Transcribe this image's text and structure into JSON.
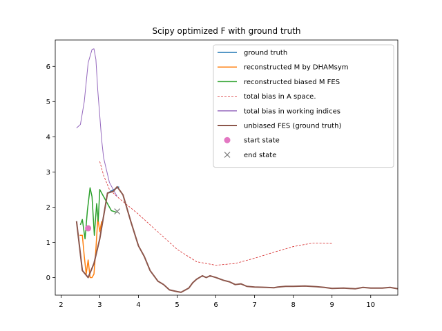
{
  "chart_data": {
    "type": "line",
    "title": "Scipy optimized F with ground truth",
    "xlabel": "",
    "ylabel": "",
    "xlim": [
      1.85,
      10.7
    ],
    "ylim": [
      -0.5,
      6.75
    ],
    "xticks": [
      2,
      3,
      4,
      5,
      6,
      7,
      8,
      9,
      10
    ],
    "yticks": [
      0,
      1,
      2,
      3,
      4,
      5,
      6
    ],
    "grid": false,
    "legend_position": "upper right",
    "series": [
      {
        "name": "ground truth",
        "color": "#1f77b4",
        "style": "solid",
        "x": [
          2.4,
          2.55,
          2.7,
          2.85,
          3.0,
          3.2,
          3.5
        ],
        "y": [
          1.6,
          0.2,
          0.0,
          0.4,
          1.1,
          2.4,
          2.58
        ]
      },
      {
        "name": "reconstructed M by DHAMsym",
        "color": "#ff7f0e",
        "style": "solid",
        "x": [
          2.48,
          2.55,
          2.6,
          2.65,
          2.7,
          2.75,
          2.8,
          2.85,
          2.9,
          2.95,
          3.0,
          3.05
        ],
        "y": [
          1.2,
          1.2,
          0.6,
          0.1,
          0.5,
          0.0,
          0.0,
          0.1,
          0.8,
          1.7,
          1.3,
          1.6
        ]
      },
      {
        "name": "reconstructed biased M FES",
        "color": "#2ca02c",
        "style": "solid",
        "x": [
          2.5,
          2.55,
          2.62,
          2.68,
          2.75,
          2.8,
          2.86,
          2.92,
          2.96,
          3.0,
          3.05,
          3.15,
          3.3,
          3.45
        ],
        "y": [
          1.5,
          1.65,
          1.1,
          1.9,
          2.55,
          2.3,
          1.2,
          2.1,
          1.6,
          2.5,
          2.4,
          2.2,
          1.9,
          1.85
        ]
      },
      {
        "name": "total bias in A space.",
        "color": "#d62728",
        "style": "dashed",
        "x": [
          3.0,
          3.1,
          3.25,
          3.5,
          4.0,
          4.5,
          5.0,
          5.5,
          6.0,
          6.5,
          7.0,
          7.5,
          8.0,
          8.5,
          9.0
        ],
        "y": [
          3.3,
          2.9,
          2.5,
          2.25,
          1.8,
          1.3,
          0.8,
          0.45,
          0.35,
          0.4,
          0.55,
          0.72,
          0.88,
          0.98,
          0.97
        ]
      },
      {
        "name": "total bias in working indices",
        "color": "#9467bd",
        "style": "solid",
        "x": [
          2.4,
          2.5,
          2.6,
          2.7,
          2.8,
          2.85,
          2.9,
          2.95,
          3.0,
          3.05,
          3.1,
          3.25,
          3.45
        ],
        "y": [
          4.25,
          4.35,
          5.0,
          6.1,
          6.48,
          6.5,
          6.2,
          5.3,
          4.6,
          3.9,
          3.4,
          2.7,
          2.3
        ]
      },
      {
        "name": "unbiased FES (ground truth)",
        "color": "#8c564b",
        "style": "solid",
        "x": [
          2.4,
          2.55,
          2.7,
          2.85,
          3.0,
          3.2,
          3.35,
          3.45,
          3.6,
          3.8,
          4.0,
          4.15,
          4.3,
          4.5,
          4.65,
          4.8,
          5.0,
          5.1,
          5.3,
          5.4,
          5.5,
          5.65,
          5.75,
          5.85,
          6.0,
          6.2,
          6.35,
          6.5,
          6.65,
          6.8,
          7.0,
          7.3,
          7.5,
          7.6,
          7.8,
          8.0,
          8.3,
          8.6,
          8.8,
          9.0,
          9.3,
          9.6,
          9.8,
          10.0,
          10.3,
          10.5,
          10.7
        ],
        "y": [
          1.6,
          0.2,
          0.0,
          0.4,
          1.1,
          2.4,
          2.45,
          2.58,
          2.35,
          1.6,
          0.9,
          0.6,
          0.2,
          -0.1,
          -0.2,
          -0.35,
          -0.4,
          -0.42,
          -0.3,
          -0.15,
          -0.05,
          0.05,
          0.0,
          0.05,
          0.0,
          -0.08,
          -0.12,
          -0.2,
          -0.18,
          -0.25,
          -0.27,
          -0.28,
          -0.29,
          -0.27,
          -0.25,
          -0.25,
          -0.24,
          -0.26,
          -0.28,
          -0.31,
          -0.3,
          -0.32,
          -0.28,
          -0.3,
          -0.3,
          -0.28,
          -0.32
        ]
      }
    ],
    "markers": [
      {
        "name": "start state",
        "symbol": "circle",
        "color": "#e377c2",
        "x": 2.7,
        "y": 1.4
      },
      {
        "name": "end state",
        "symbol": "x",
        "color": "#7f7f7f",
        "x": 3.45,
        "y": 1.88
      }
    ]
  }
}
